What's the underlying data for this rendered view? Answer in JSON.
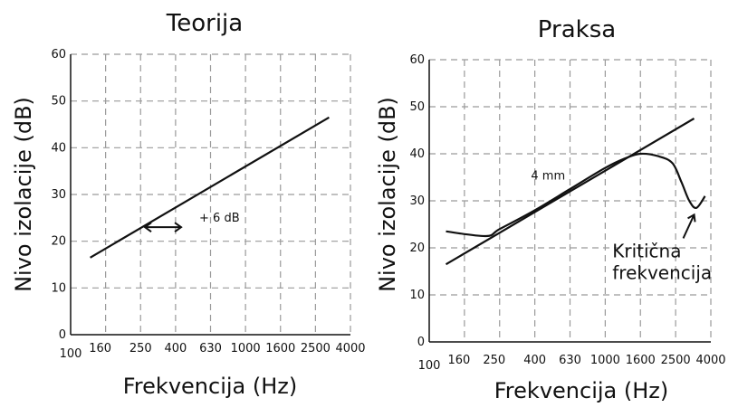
{
  "chart_data": [
    {
      "type": "line",
      "title": "Teorija",
      "xlabel": "Frekvencija (Hz)",
      "ylabel": "Nivo izolacije (dB)",
      "x_categories": [
        "100",
        "160",
        "250",
        "400",
        "630",
        "1000",
        "1600",
        "2500",
        "4000"
      ],
      "x_scale": "log-octave-thirds",
      "ylim": [
        0,
        60
      ],
      "yticks": [
        0,
        10,
        20,
        30,
        40,
        50,
        60
      ],
      "grid": true,
      "series": [
        {
          "points": [
            {
              "x": 130,
              "y": 16.5
            },
            {
              "x": 3000,
              "y": 46.5
            }
          ]
        }
      ],
      "annotations": [
        {
          "text": "+ 6 dB",
          "x_from": 265,
          "x_to": 430,
          "y": 23
        }
      ]
    },
    {
      "type": "line",
      "title": "Praksa",
      "xlabel": "Frekvencija (Hz)",
      "ylabel": "Nivo izolacije (dB)",
      "x_categories": [
        "100",
        "160",
        "250",
        "400",
        "630",
        "1000",
        "1600",
        "2500",
        "4000"
      ],
      "x_scale": "log-octave-thirds",
      "ylim": [
        0,
        60
      ],
      "yticks": [
        0,
        10,
        20,
        30,
        40,
        50,
        60
      ],
      "grid": true,
      "series": [
        {
          "points": [
            {
              "x": 125,
              "y": 16.5
            },
            {
              "x": 3200,
              "y": 47.5
            }
          ]
        },
        {
          "points": [
            {
              "x": 125,
              "y": 23.5
            },
            {
              "x": 210,
              "y": 22.5
            },
            {
              "x": 250,
              "y": 24.0
            },
            {
              "x": 400,
              "y": 28.0
            },
            {
              "x": 630,
              "y": 32.5
            },
            {
              "x": 1000,
              "y": 37.0
            },
            {
              "x": 1300,
              "y": 39.0
            },
            {
              "x": 1600,
              "y": 40.0
            },
            {
              "x": 2000,
              "y": 39.5
            },
            {
              "x": 2400,
              "y": 38.0
            },
            {
              "x": 2700,
              "y": 34.0
            },
            {
              "x": 3000,
              "y": 30.0
            },
            {
              "x": 3300,
              "y": 28.5
            },
            {
              "x": 3700,
              "y": 31.0
            }
          ]
        }
      ],
      "annotations": [
        {
          "text": "4 mm",
          "x": 380,
          "y": 34.5
        },
        {
          "text": "Kritična\nfrekvencija",
          "x": 1100,
          "y": 18,
          "arrow_to": {
            "x": 3200,
            "y": 28
          }
        }
      ]
    }
  ]
}
